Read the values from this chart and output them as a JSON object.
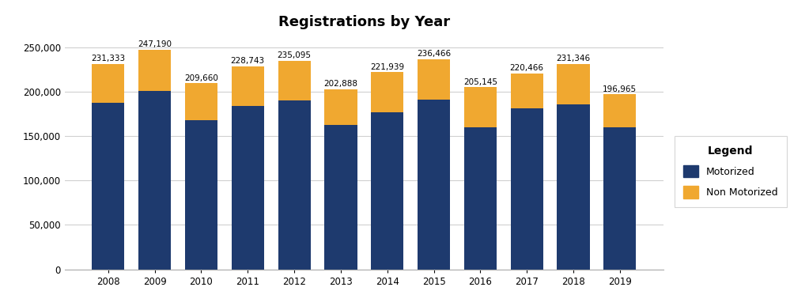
{
  "years": [
    "2008",
    "2009",
    "2010",
    "2011",
    "2012",
    "2013",
    "2014",
    "2015",
    "2016",
    "2017",
    "2018",
    "2019"
  ],
  "totals": [
    231333,
    247190,
    209660,
    228743,
    235095,
    202888,
    221939,
    236466,
    205145,
    220466,
    231346,
    196965
  ],
  "motorized": [
    188000,
    201000,
    168000,
    184000,
    190000,
    163000,
    177000,
    191000,
    160000,
    181000,
    186000,
    160000
  ],
  "motorized_color": "#1e3a6e",
  "nonmotorized_color": "#f0a830",
  "title": "Registrations by Year",
  "title_fontsize": 13,
  "ylabel_values": [
    0,
    50000,
    100000,
    150000,
    200000,
    250000
  ],
  "ylim": [
    0,
    262000
  ],
  "background_color": "#ffffff",
  "plot_bg_color": "#ffffff",
  "grid_color": "#d0d0d0",
  "legend_title": "Legend",
  "legend_labels": [
    "Motorized",
    "Non Motorized"
  ],
  "bar_width": 0.7,
  "label_fontsize": 7.5,
  "tick_fontsize": 8.5
}
